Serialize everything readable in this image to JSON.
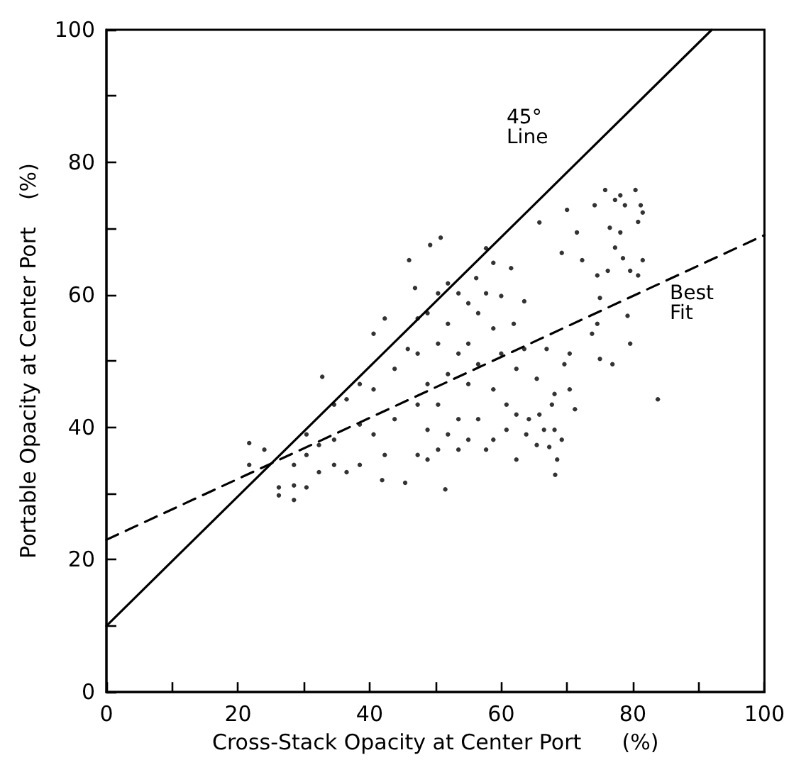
{
  "chart_data": {
    "type": "scatter",
    "xlabel": "Cross-Stack Opacity at Center Port      (%)",
    "ylabel": "Portable Opacity at Center Port    (%)",
    "xlim": [
      0,
      100
    ],
    "ylim": [
      0,
      100
    ],
    "xticks": [
      0,
      {
        "value": 10,
        "label": null
      },
      20,
      {
        "value": 30,
        "label": null
      },
      40,
      {
        "value": 50,
        "label": null
      },
      60,
      {
        "value": 70,
        "label": null
      },
      80,
      {
        "value": 90,
        "label": null
      },
      100
    ],
    "yticks": [
      0,
      {
        "value": 10,
        "label": null
      },
      20,
      {
        "value": 30,
        "label": null
      },
      40,
      {
        "value": 50,
        "label": null
      },
      60,
      {
        "value": 70,
        "label": null
      },
      80,
      {
        "value": 90,
        "label": null
      },
      100
    ],
    "grid": false,
    "annotations": [
      "45° Line",
      "Best Fit"
    ],
    "series": [
      {
        "marker": "circle",
        "color": "#000000",
        "x": [
          21.7,
          21.7,
          24,
          26.2,
          26.2,
          28.5,
          28.5,
          28.5,
          30.4,
          30.4,
          30.4,
          32.3,
          32.3,
          32.8,
          34.6,
          34.6,
          34.6,
          36.5,
          36.5,
          38.5,
          38.5,
          38.5,
          40.6,
          40.6,
          40.6,
          41.9,
          42.3,
          42.3,
          43.8,
          43.8,
          45.4,
          45.8,
          46,
          46.9,
          47.3,
          47.3,
          47.3,
          47.3,
          48.8,
          48.8,
          48.8,
          48.8,
          49.2,
          50.8,
          50.4,
          50.4,
          50.4,
          50.4,
          51.5,
          51.9,
          51.9,
          51.9,
          51.9,
          53.5,
          53.5,
          53.5,
          53.5,
          55,
          55,
          55,
          55,
          56.2,
          56.5,
          56.5,
          56.5,
          57.7,
          57.7,
          57.7,
          58.8,
          58.8,
          58.8,
          58.8,
          60,
          60,
          60.8,
          60.8,
          61.5,
          61.9,
          62.3,
          62.3,
          62.3,
          63.5,
          63.5,
          63.8,
          64.2,
          65.4,
          65.4,
          65.8,
          65.8,
          66.5,
          66.9,
          67.3,
          67.7,
          68.1,
          68.1,
          68.2,
          68.5,
          69.2,
          69.2,
          69.6,
          70,
          70.4,
          70.4,
          71.2,
          71.5,
          72.3,
          73.8,
          74.2,
          74.6,
          74.6,
          75,
          75,
          75.8,
          76.2,
          76.5,
          76.9,
          77.3,
          77.3,
          78.1,
          78.1,
          78.5,
          78.8,
          79.2,
          79.6,
          79.6,
          80.4,
          80.8,
          80.8,
          81.2,
          81.5,
          81.5,
          83.8
        ],
        "values": [
          37.6,
          34.3,
          36.6,
          30.9,
          29.7,
          29,
          31.2,
          34.3,
          38.9,
          35.8,
          30.9,
          37.3,
          33.2,
          47.6,
          43.4,
          38.1,
          34.3,
          44.2,
          33.2,
          46.5,
          40.4,
          34.3,
          45.7,
          54.1,
          38.9,
          32,
          56.4,
          35.8,
          41.2,
          48.8,
          31.6,
          51.8,
          65.2,
          61,
          56.4,
          51.1,
          43.4,
          35.8,
          35.1,
          57.2,
          46.5,
          39.6,
          67.5,
          68.6,
          60.2,
          52.6,
          43.4,
          36.6,
          30.6,
          61.7,
          55.6,
          48,
          38.9,
          60.2,
          51.1,
          41.2,
          36.6,
          58.7,
          52.6,
          46.5,
          38.1,
          62.5,
          57.2,
          49.5,
          41.2,
          67,
          60.2,
          36.6,
          64.8,
          54.9,
          45.7,
          38.1,
          59.8,
          51.1,
          43.4,
          39.6,
          64,
          55.6,
          48.8,
          41.9,
          35.1,
          59,
          51.8,
          38.9,
          41.2,
          37.3,
          47.3,
          70.9,
          41.9,
          39.6,
          51.8,
          37,
          43.4,
          39.6,
          45,
          32.8,
          35.1,
          38.1,
          66.3,
          49.5,
          72.8,
          51.1,
          45.7,
          42.7,
          69.4,
          65.2,
          54.1,
          73.5,
          62.9,
          55.6,
          50.3,
          59.5,
          75.8,
          63.6,
          70.1,
          49.5,
          74.3,
          67.1,
          75,
          69.4,
          65.5,
          73.5,
          56.8,
          52.6,
          63.6,
          75.8,
          71,
          62.9,
          73.5,
          72.4,
          65.2,
          44.2
        ]
      },
      {
        "type": "line",
        "marker": "none",
        "line_style": "solid",
        "color": "#000000",
        "x": [
          0,
          92
        ],
        "values": [
          10,
          100
        ]
      },
      {
        "type": "line",
        "marker": "none",
        "line_style": "dashed",
        "color": "#000000",
        "x": [
          0,
          100
        ],
        "values": [
          23,
          69
        ]
      }
    ]
  }
}
